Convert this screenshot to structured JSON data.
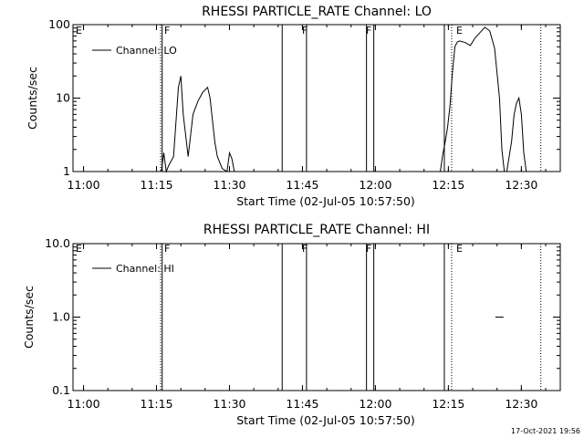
{
  "footer": {
    "timestamp": "17-Oct-2021 19:56"
  },
  "chart_data": [
    {
      "type": "line",
      "title": "RHESSI PARTICLE_RATE Channel: LO",
      "xlabel": "Start Time (02-Jul-05 10:57:50)",
      "ylabel": "Counts/sec",
      "y_scale": "log",
      "ylim": [
        1,
        100
      ],
      "xlim": [
        "10:57:50",
        "12:38:00"
      ],
      "x_ticks": [
        "11:00",
        "11:15",
        "11:30",
        "11:45",
        "12:00",
        "12:15",
        "12:30"
      ],
      "y_ticks": [
        "1",
        "10",
        "100"
      ],
      "legend": {
        "entries": [
          "Channel: LO"
        ],
        "placement": "top-left"
      },
      "flags": [
        "E",
        "F",
        "F",
        "F",
        "E"
      ],
      "series": [
        {
          "name": "Channel: LO",
          "segments": [
            {
              "x": [
                "11:16:00",
                "11:16:30",
                "11:17:00",
                "11:17:30",
                "11:18:30",
                "11:19:30",
                "11:20:00",
                "11:20:30",
                "11:21:30",
                "11:22:30",
                "11:23:30",
                "11:24:30",
                "11:25:30",
                "11:26:00",
                "11:26:30",
                "11:27:00",
                "11:27:30",
                "11:28:30",
                "11:29:30",
                "11:30:00",
                "11:30:30",
                "11:31:00",
                "11:31:30"
              ],
              "y": [
                0.8,
                1.8,
                0.8,
                1.2,
                1.6,
                14,
                20,
                6,
                1.6,
                6,
                9,
                12,
                14,
                10,
                5,
                2.5,
                1.6,
                1.1,
                0.8,
                1.8,
                1.5,
                0.8,
                0.8
              ]
            },
            {
              "x": [
                "12:13:20",
                "12:13:50",
                "12:14:20",
                "12:14:50",
                "12:15:20",
                "12:15:50",
                "12:16:20",
                "12:16:50",
                "12:17:20",
                "12:18:30",
                "12:19:30",
                "12:20:30",
                "12:21:30",
                "12:22:30",
                "12:23:30",
                "12:24:30",
                "12:25:30",
                "12:26:00",
                "12:26:30",
                "12:27:00",
                "12:27:30",
                "12:28:00",
                "12:28:30",
                "12:29:00",
                "12:29:30",
                "12:30:00",
                "12:30:30",
                "12:31:00",
                "12:31:30",
                "12:32:00"
              ],
              "y": [
                0.8,
                1.7,
                2.5,
                4,
                8,
                22,
                50,
                58,
                60,
                57,
                52,
                66,
                78,
                92,
                82,
                48,
                10,
                2,
                0.8,
                0.8,
                1.6,
                2.6,
                6,
                8.5,
                10,
                6,
                1.8,
                0.8,
                0.8,
                0.8
              ]
            }
          ]
        }
      ],
      "vertical_lines": {
        "solid": [
          "11:16:10",
          "11:40:50",
          "11:45:50",
          "11:58:10",
          "11:59:40",
          "12:14:10"
        ],
        "dotted": [
          "11:15:50",
          "12:15:40",
          "12:34:00"
        ]
      }
    },
    {
      "type": "line",
      "title": "RHESSI PARTICLE_RATE Channel: HI",
      "xlabel": "Start Time (02-Jul-05 10:57:50)",
      "ylabel": "Counts/sec",
      "y_scale": "log",
      "ylim": [
        0.1,
        10
      ],
      "xlim": [
        "10:57:50",
        "12:38:00"
      ],
      "x_ticks": [
        "11:00",
        "11:15",
        "11:30",
        "11:45",
        "12:00",
        "12:15",
        "12:30"
      ],
      "y_ticks": [
        "0.1",
        "1.0",
        "10.0"
      ],
      "legend": {
        "entries": [
          "Channel: HI"
        ],
        "placement": "top-left"
      },
      "flags": [
        "E",
        "F",
        "F",
        "F",
        "E"
      ],
      "series": [
        {
          "name": "Channel: HI",
          "segments": [
            {
              "x": [
                "12:24:40",
                "12:26:20"
              ],
              "y": [
                1.0,
                1.0
              ]
            }
          ]
        }
      ],
      "vertical_lines": {
        "solid": [
          "11:16:10",
          "11:40:50",
          "11:45:50",
          "11:58:10",
          "11:59:40",
          "12:14:10"
        ],
        "dotted": [
          "11:15:50",
          "12:15:40",
          "12:34:00"
        ]
      }
    }
  ]
}
